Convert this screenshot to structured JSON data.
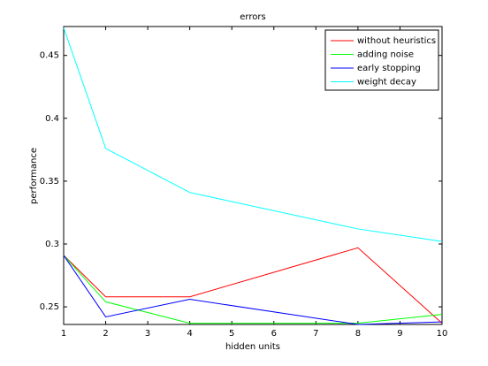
{
  "chart_data": {
    "type": "line",
    "title": "errors",
    "x_label": "hidden units",
    "y_label": "performance",
    "x": [
      1,
      2,
      4,
      8,
      10
    ],
    "series": [
      {
        "name": "without heuristics",
        "color": "#ff0000",
        "values": [
          0.291,
          0.258,
          0.258,
          0.297,
          0.237
        ]
      },
      {
        "name": "adding noise",
        "color": "#00ff00",
        "values": [
          0.291,
          0.254,
          0.237,
          0.237,
          0.244
        ]
      },
      {
        "name": "early stopping",
        "color": "#0000ff",
        "values": [
          0.291,
          0.242,
          0.256,
          0.236,
          0.238
        ]
      },
      {
        "name": "weight decay",
        "color": "#00ffff",
        "values": [
          0.472,
          0.376,
          0.341,
          0.312,
          0.302
        ]
      }
    ],
    "xlim": [
      1,
      10
    ],
    "xticks": [
      1,
      2,
      3,
      4,
      5,
      6,
      7,
      8,
      9,
      10
    ],
    "ylim": [
      0.236,
      0.473
    ],
    "yticks": [
      0.25,
      0.3,
      0.35,
      0.4,
      0.45
    ],
    "grid": false,
    "legend": "top-right"
  }
}
